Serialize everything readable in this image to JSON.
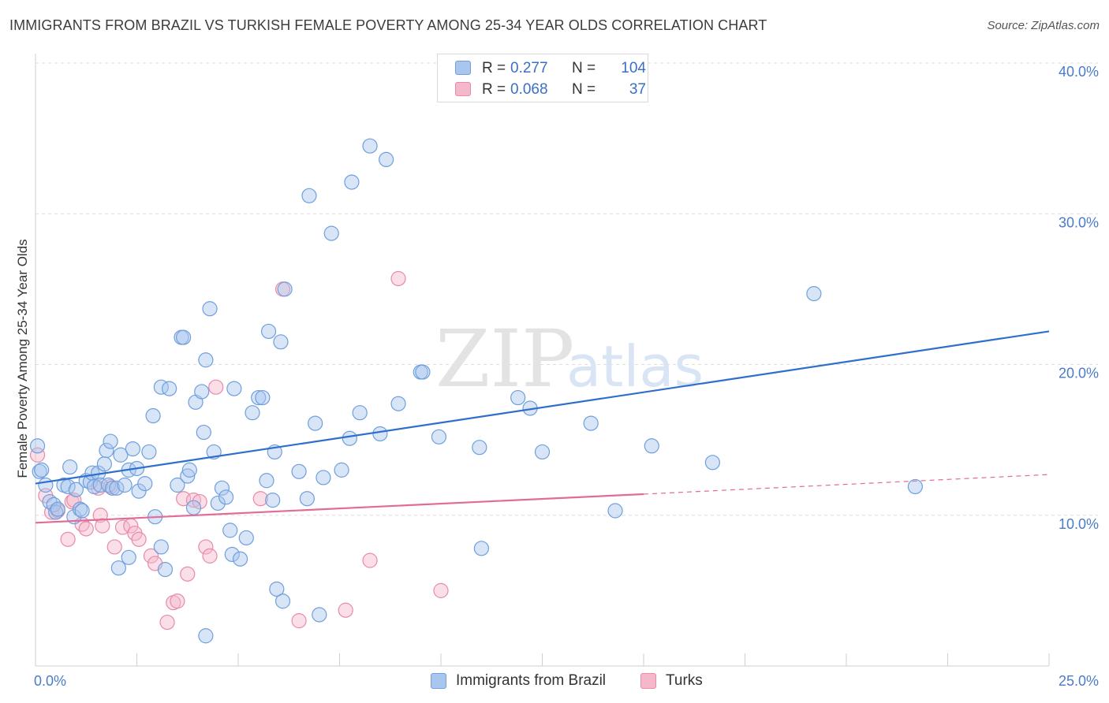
{
  "title": "IMMIGRANTS FROM BRAZIL VS TURKISH FEMALE POVERTY AMONG 25-34 YEAR OLDS CORRELATION CHART",
  "source": "Source: ZipAtlas.com",
  "watermark": {
    "zip": "ZIP",
    "atlas": "atlas"
  },
  "legend_top": [
    {
      "r_label": "R =",
      "r_value": "0.277",
      "n_label": "N =",
      "n_value": "104"
    },
    {
      "r_label": "R =",
      "r_value": "0.068",
      "n_label": "N =",
      "n_value": "37"
    }
  ],
  "colors": {
    "brazil_fill": "#a9c6ee",
    "brazil_stroke": "#6f9fdc",
    "brazil_line": "#2f6fcc",
    "turks_fill": "#f5b8cb",
    "turks_stroke": "#e88aa8",
    "turks_line": "#e06c97",
    "grid": "#dddddd",
    "tick_text": "#4a7cc7"
  },
  "chart_data": {
    "type": "scatter",
    "title": "IMMIGRANTS FROM BRAZIL VS TURKISH FEMALE POVERTY AMONG 25-34 YEAR OLDS CORRELATION CHART",
    "xlabel": "",
    "ylabel": "Female Poverty Among 25-34 Year Olds",
    "xlim": [
      0,
      25
    ],
    "ylim": [
      0,
      40
    ],
    "x_tick_labels": [
      "0.0%",
      "25.0%"
    ],
    "y_ticks": [
      10,
      20,
      30,
      40
    ],
    "y_tick_labels": [
      "10.0%",
      "20.0%",
      "30.0%",
      "40.0%"
    ],
    "grid": true,
    "legend_position": "top-center",
    "series": [
      {
        "name": "Immigrants from Brazil",
        "r": 0.277,
        "n": 104,
        "trend": {
          "x0": 0,
          "y0": 12.1,
          "x1": 25,
          "y1": 22.2
        },
        "points": [
          [
            0.05,
            14.6
          ],
          [
            0.1,
            12.9
          ],
          [
            0.15,
            13.0
          ],
          [
            0.25,
            12.0
          ],
          [
            0.35,
            10.9
          ],
          [
            0.45,
            10.7
          ],
          [
            0.5,
            10.2
          ],
          [
            0.55,
            10.4
          ],
          [
            0.7,
            12.0
          ],
          [
            0.8,
            11.9
          ],
          [
            0.85,
            13.2
          ],
          [
            0.95,
            9.9
          ],
          [
            1.0,
            11.7
          ],
          [
            1.1,
            10.4
          ],
          [
            1.15,
            10.3
          ],
          [
            1.25,
            12.3
          ],
          [
            1.35,
            12.2
          ],
          [
            1.4,
            12.8
          ],
          [
            1.45,
            11.9
          ],
          [
            1.55,
            12.8
          ],
          [
            1.6,
            12.0
          ],
          [
            1.7,
            13.4
          ],
          [
            1.75,
            14.3
          ],
          [
            1.8,
            12.0
          ],
          [
            1.85,
            14.9
          ],
          [
            1.9,
            11.8
          ],
          [
            2.0,
            11.8
          ],
          [
            2.1,
            14.0
          ],
          [
            2.2,
            12.0
          ],
          [
            2.3,
            13.0
          ],
          [
            2.4,
            14.4
          ],
          [
            2.5,
            13.1
          ],
          [
            2.55,
            11.6
          ],
          [
            2.7,
            12.1
          ],
          [
            2.8,
            14.2
          ],
          [
            2.9,
            16.6
          ],
          [
            2.95,
            9.9
          ],
          [
            3.1,
            7.9
          ],
          [
            3.2,
            6.4
          ],
          [
            2.05,
            6.5
          ],
          [
            2.3,
            7.2
          ],
          [
            3.1,
            18.5
          ],
          [
            3.3,
            18.4
          ],
          [
            3.5,
            12.0
          ],
          [
            3.6,
            21.8
          ],
          [
            3.65,
            21.8
          ],
          [
            3.75,
            12.6
          ],
          [
            3.8,
            13.0
          ],
          [
            3.9,
            10.5
          ],
          [
            3.95,
            17.5
          ],
          [
            4.1,
            18.2
          ],
          [
            4.15,
            15.5
          ],
          [
            4.2,
            20.3
          ],
          [
            4.3,
            23.7
          ],
          [
            4.4,
            14.2
          ],
          [
            4.5,
            10.8
          ],
          [
            4.6,
            11.8
          ],
          [
            4.7,
            11.2
          ],
          [
            4.8,
            9.0
          ],
          [
            4.85,
            7.4
          ],
          [
            4.9,
            18.4
          ],
          [
            5.05,
            7.1
          ],
          [
            5.2,
            8.5
          ],
          [
            5.35,
            16.8
          ],
          [
            5.5,
            17.8
          ],
          [
            5.6,
            17.8
          ],
          [
            5.7,
            12.3
          ],
          [
            5.75,
            22.2
          ],
          [
            5.85,
            11.0
          ],
          [
            5.9,
            14.2
          ],
          [
            6.05,
            21.5
          ],
          [
            6.15,
            25.0
          ],
          [
            5.95,
            5.1
          ],
          [
            6.1,
            4.3
          ],
          [
            6.5,
            12.9
          ],
          [
            6.7,
            11.1
          ],
          [
            6.75,
            31.2
          ],
          [
            6.9,
            16.1
          ],
          [
            7.0,
            3.4
          ],
          [
            7.1,
            12.5
          ],
          [
            7.3,
            28.7
          ],
          [
            7.55,
            13.0
          ],
          [
            7.75,
            15.1
          ],
          [
            7.8,
            32.1
          ],
          [
            8.0,
            16.8
          ],
          [
            8.25,
            34.5
          ],
          [
            8.5,
            15.4
          ],
          [
            8.65,
            33.6
          ],
          [
            8.95,
            17.4
          ],
          [
            9.5,
            19.5
          ],
          [
            9.55,
            19.5
          ],
          [
            9.95,
            15.2
          ],
          [
            10.95,
            14.5
          ],
          [
            11.0,
            7.8
          ],
          [
            11.9,
            17.8
          ],
          [
            12.2,
            17.1
          ],
          [
            12.5,
            14.2
          ],
          [
            13.7,
            16.1
          ],
          [
            14.3,
            10.3
          ],
          [
            15.2,
            14.6
          ],
          [
            16.7,
            13.5
          ],
          [
            19.2,
            24.7
          ],
          [
            21.7,
            11.9
          ],
          [
            4.2,
            2.0
          ]
        ]
      },
      {
        "name": "Turks",
        "r": 0.068,
        "n": 37,
        "trend": {
          "x0": 0,
          "y0": 9.5,
          "x1": 15,
          "y1": 11.4,
          "dashed_to": {
            "x": 25,
            "y": 12.7
          }
        },
        "points": [
          [
            0.05,
            14.0
          ],
          [
            0.25,
            11.3
          ],
          [
            0.4,
            10.2
          ],
          [
            0.55,
            10.3
          ],
          [
            0.8,
            8.4
          ],
          [
            0.9,
            10.9
          ],
          [
            0.95,
            11.0
          ],
          [
            1.15,
            9.4
          ],
          [
            1.25,
            9.1
          ],
          [
            1.55,
            11.8
          ],
          [
            1.6,
            10.0
          ],
          [
            1.65,
            9.3
          ],
          [
            1.85,
            11.9
          ],
          [
            1.95,
            7.9
          ],
          [
            2.15,
            9.2
          ],
          [
            2.35,
            9.3
          ],
          [
            2.45,
            8.8
          ],
          [
            2.55,
            8.4
          ],
          [
            2.85,
            7.3
          ],
          [
            2.95,
            6.8
          ],
          [
            3.25,
            2.9
          ],
          [
            3.4,
            4.2
          ],
          [
            3.5,
            4.3
          ],
          [
            3.65,
            11.1
          ],
          [
            3.75,
            6.1
          ],
          [
            3.9,
            11.0
          ],
          [
            4.05,
            10.9
          ],
          [
            4.2,
            7.9
          ],
          [
            4.3,
            7.3
          ],
          [
            4.45,
            18.5
          ],
          [
            5.55,
            11.1
          ],
          [
            6.1,
            25.0
          ],
          [
            6.5,
            3.0
          ],
          [
            7.65,
            3.7
          ],
          [
            8.25,
            7.0
          ],
          [
            8.95,
            25.7
          ],
          [
            10.0,
            5.0
          ]
        ]
      }
    ]
  },
  "legend_bottom": [
    {
      "label": "Immigrants from Brazil"
    },
    {
      "label": "Turks"
    }
  ]
}
